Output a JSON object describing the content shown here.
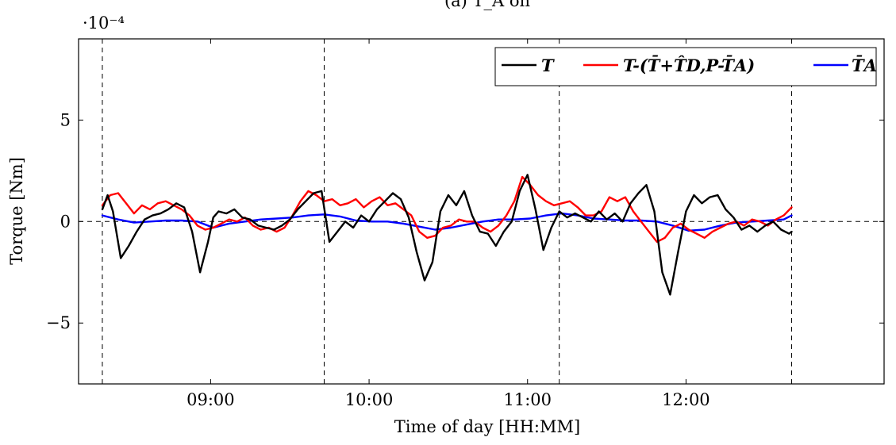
{
  "chart_data": {
    "type": "line",
    "title": "(a) T_A on",
    "xlabel": "Time of day [HH:MM]",
    "ylabel": "Torque [Nm]",
    "y_scale_label": "·10⁻⁴",
    "xlim": [
      "08:10",
      "13:15"
    ],
    "ylim": [
      -8,
      9
    ],
    "x_ticks": [
      "09:00",
      "10:00",
      "11:00",
      "12:00"
    ],
    "y_ticks": [
      -5,
      0,
      5
    ],
    "y_tick_labels": [
      "−5",
      "0",
      "5"
    ],
    "vertical_markers": [
      "08:19",
      "09:43",
      "11:12",
      "12:40"
    ],
    "zero_line": true,
    "grid": false,
    "legend_placement": "top-right",
    "series": [
      {
        "name": "T",
        "legend_label": "T",
        "color": "#000000",
        "x": [
          "08:19",
          "08:21",
          "08:23",
          "08:26",
          "08:29",
          "08:32",
          "08:35",
          "08:38",
          "08:41",
          "08:44",
          "08:47",
          "08:50",
          "08:53",
          "08:56",
          "08:59",
          "09:01",
          "09:03",
          "09:06",
          "09:09",
          "09:12",
          "09:15",
          "09:18",
          "09:21",
          "09:24",
          "09:27",
          "09:30",
          "09:33",
          "09:36",
          "09:39",
          "09:42",
          "09:45",
          "09:48",
          "09:51",
          "09:54",
          "09:57",
          "10:00",
          "10:03",
          "10:06",
          "10:09",
          "10:12",
          "10:15",
          "10:18",
          "10:21",
          "10:24",
          "10:27",
          "10:30",
          "10:33",
          "10:36",
          "10:39",
          "10:42",
          "10:45",
          "10:48",
          "10:51",
          "10:54",
          "10:57",
          "11:00",
          "11:03",
          "11:06",
          "11:09",
          "11:12",
          "11:15",
          "11:18",
          "11:21",
          "11:24",
          "11:27",
          "11:30",
          "11:33",
          "11:36",
          "11:39",
          "11:42",
          "11:45",
          "11:48",
          "11:51",
          "11:54",
          "11:57",
          "12:00",
          "12:03",
          "12:06",
          "12:09",
          "12:12",
          "12:15",
          "12:18",
          "12:21",
          "12:24",
          "12:27",
          "12:30",
          "12:33",
          "12:36",
          "12:39",
          "12:40"
        ],
        "values": [
          0.6,
          1.3,
          0.5,
          -1.8,
          -1.2,
          -0.5,
          0.1,
          0.3,
          0.4,
          0.6,
          0.9,
          0.7,
          -0.5,
          -2.5,
          -1.0,
          0.2,
          0.5,
          0.4,
          0.6,
          0.2,
          0.1,
          -0.2,
          -0.3,
          -0.4,
          -0.2,
          0.1,
          0.6,
          1.0,
          1.4,
          1.5,
          -1.0,
          -0.5,
          0.0,
          -0.3,
          0.3,
          0.0,
          0.6,
          1.0,
          1.4,
          1.1,
          0.2,
          -1.5,
          -2.9,
          -2.0,
          0.5,
          1.3,
          0.8,
          1.5,
          0.3,
          -0.5,
          -0.6,
          -1.2,
          -0.5,
          0.0,
          1.5,
          2.3,
          0.6,
          -1.4,
          -0.3,
          0.5,
          0.2,
          0.4,
          0.2,
          0.0,
          0.5,
          0.1,
          0.4,
          0.0,
          0.9,
          1.4,
          1.8,
          0.5,
          -2.5,
          -3.6,
          -1.5,
          0.5,
          1.3,
          0.9,
          1.2,
          1.3,
          0.6,
          0.2,
          -0.4,
          -0.2,
          -0.5,
          -0.2,
          0.0,
          -0.4,
          -0.6,
          -0.5
        ]
      },
      {
        "name": "T-(T̄+T̂_D,P-T̄_A)",
        "legend_label": "T-(T̄+T̂D,P-T̄A)",
        "color": "#ff0000",
        "x": [
          "08:19",
          "08:22",
          "08:25",
          "08:28",
          "08:31",
          "08:34",
          "08:37",
          "08:40",
          "08:43",
          "08:46",
          "08:49",
          "08:52",
          "08:55",
          "08:58",
          "09:01",
          "09:04",
          "09:07",
          "09:10",
          "09:13",
          "09:16",
          "09:19",
          "09:22",
          "09:25",
          "09:28",
          "09:31",
          "09:34",
          "09:37",
          "09:40",
          "09:43",
          "09:46",
          "09:49",
          "09:52",
          "09:55",
          "09:58",
          "10:01",
          "10:04",
          "10:07",
          "10:10",
          "10:13",
          "10:16",
          "10:19",
          "10:22",
          "10:25",
          "10:28",
          "10:31",
          "10:34",
          "10:37",
          "10:40",
          "10:43",
          "10:46",
          "10:49",
          "10:52",
          "10:55",
          "10:58",
          "11:01",
          "11:04",
          "11:07",
          "11:10",
          "11:13",
          "11:16",
          "11:19",
          "11:22",
          "11:25",
          "11:28",
          "11:31",
          "11:34",
          "11:37",
          "11:40",
          "11:43",
          "11:46",
          "11:49",
          "11:52",
          "11:55",
          "11:58",
          "12:01",
          "12:04",
          "12:07",
          "12:10",
          "12:13",
          "12:16",
          "12:19",
          "12:22",
          "12:25",
          "12:28",
          "12:31",
          "12:34",
          "12:37",
          "12:40"
        ],
        "values": [
          0.8,
          1.3,
          1.4,
          0.9,
          0.4,
          0.8,
          0.6,
          0.9,
          1.0,
          0.8,
          0.6,
          0.3,
          -0.2,
          -0.4,
          -0.3,
          -0.1,
          0.1,
          0.0,
          0.2,
          -0.2,
          -0.4,
          -0.3,
          -0.5,
          -0.3,
          0.3,
          1.0,
          1.5,
          1.3,
          1.0,
          1.1,
          0.8,
          0.9,
          1.1,
          0.7,
          1.0,
          1.2,
          0.8,
          0.9,
          0.6,
          0.3,
          -0.5,
          -0.8,
          -0.7,
          -0.3,
          -0.2,
          0.1,
          0.0,
          0.0,
          -0.3,
          -0.5,
          -0.2,
          0.3,
          1.0,
          2.2,
          1.8,
          1.3,
          1.0,
          0.8,
          0.9,
          1.0,
          0.7,
          0.3,
          0.3,
          0.5,
          1.2,
          1.0,
          1.2,
          0.5,
          0.0,
          -0.5,
          -1.0,
          -0.8,
          -0.3,
          -0.1,
          -0.4,
          -0.6,
          -0.8,
          -0.5,
          -0.3,
          -0.1,
          0.0,
          -0.2,
          0.1,
          0.0,
          -0.2,
          0.1,
          0.3,
          0.7
        ]
      },
      {
        "name": "T̄_A",
        "legend_label": "T̄A",
        "color": "#0000ff",
        "x": [
          "08:19",
          "08:25",
          "08:31",
          "08:37",
          "08:43",
          "08:49",
          "08:55",
          "09:01",
          "09:07",
          "09:13",
          "09:19",
          "09:25",
          "09:31",
          "09:37",
          "09:43",
          "09:49",
          "09:55",
          "10:01",
          "10:07",
          "10:13",
          "10:19",
          "10:25",
          "10:31",
          "10:37",
          "10:43",
          "10:49",
          "10:55",
          "11:01",
          "11:07",
          "11:13",
          "11:19",
          "11:25",
          "11:31",
          "11:37",
          "11:43",
          "11:49",
          "11:55",
          "12:01",
          "12:07",
          "12:13",
          "12:19",
          "12:25",
          "12:31",
          "12:37",
          "12:40"
        ],
        "values": [
          0.3,
          0.1,
          -0.05,
          0.0,
          0.05,
          0.05,
          0.0,
          -0.3,
          -0.1,
          0.0,
          0.1,
          0.15,
          0.2,
          0.3,
          0.35,
          0.25,
          0.05,
          0.0,
          0.0,
          -0.1,
          -0.25,
          -0.4,
          -0.3,
          -0.15,
          0.0,
          0.1,
          0.1,
          0.15,
          0.3,
          0.4,
          0.3,
          0.15,
          0.1,
          0.05,
          0.05,
          0.0,
          -0.2,
          -0.45,
          -0.4,
          -0.2,
          -0.05,
          0.0,
          0.05,
          0.1,
          0.3
        ]
      }
    ]
  }
}
